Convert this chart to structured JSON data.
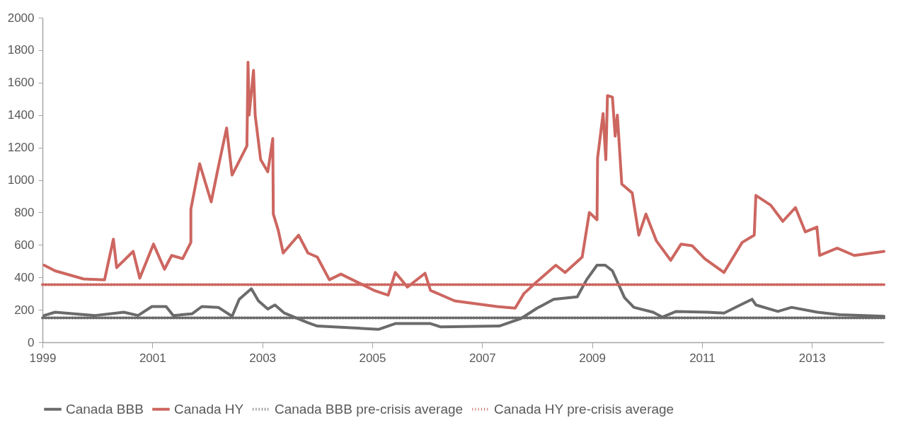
{
  "chart_data": {
    "type": "line",
    "xlim": [
      1999,
      2014.31
    ],
    "xticks": [
      1999,
      2001,
      2003,
      2005,
      2007,
      2009,
      2011,
      2013
    ],
    "ylim": [
      0,
      2000
    ],
    "yticks": [
      0,
      200,
      400,
      600,
      800,
      1000,
      1200,
      1400,
      1600,
      1800,
      2000
    ],
    "grid": false,
    "legend": "bottom",
    "line_style": "solid",
    "series": [
      {
        "name": "Canada BBB",
        "color": "#6b6b6b",
        "x": [
          1999.03,
          1999.23,
          1999.96,
          2000.48,
          2000.74,
          2000.99,
          2001.25,
          2001.38,
          2001.72,
          2001.9,
          2002.2,
          2002.45,
          2002.58,
          2002.8,
          2002.93,
          2003.1,
          2003.23,
          2003.4,
          2003.83,
          2004.0,
          2005.12,
          2005.42,
          2006.06,
          2006.24,
          2007.31,
          2007.7,
          2008.0,
          2008.3,
          2008.73,
          2008.9,
          2009.09,
          2009.24,
          2009.37,
          2009.59,
          2009.76,
          2010.11,
          2010.28,
          2010.53,
          2011.1,
          2011.4,
          2011.73,
          2011.91,
          2011.98,
          2012.38,
          2012.63,
          2013.1,
          2013.5,
          2014.31
        ],
        "values": [
          165,
          185,
          165,
          185,
          165,
          220,
          220,
          165,
          175,
          220,
          215,
          160,
          265,
          330,
          255,
          205,
          230,
          180,
          120,
          100,
          80,
          115,
          115,
          95,
          100,
          145,
          210,
          265,
          280,
          385,
          475,
          475,
          440,
          275,
          215,
          185,
          155,
          190,
          185,
          180,
          235,
          265,
          230,
          190,
          215,
          185,
          170,
          160
        ]
      },
      {
        "name": "Canada HY",
        "color": "#cd6660",
        "x": [
          1999.03,
          1999.23,
          1999.75,
          2000.13,
          2000.29,
          2000.35,
          2000.65,
          2000.77,
          2001.02,
          2001.22,
          2001.35,
          2001.55,
          2001.7,
          2001.7,
          2001.86,
          2002.07,
          2002.2,
          2002.35,
          2002.45,
          2002.72,
          2002.74,
          2002.76,
          2002.84,
          2002.87,
          2002.97,
          2003.1,
          2003.19,
          2003.2,
          2003.29,
          2003.38,
          2003.66,
          2003.83,
          2004.0,
          2004.22,
          2004.43,
          2005.03,
          2005.29,
          2005.42,
          2005.64,
          2005.96,
          2006.06,
          2006.5,
          2007.27,
          2007.6,
          2007.76,
          2008.0,
          2008.34,
          2008.51,
          2008.82,
          2008.95,
          2009.09,
          2009.1,
          2009.2,
          2009.25,
          2009.28,
          2009.37,
          2009.42,
          2009.46,
          2009.54,
          2009.73,
          2009.85,
          2009.98,
          2010.17,
          2010.43,
          2010.62,
          2010.82,
          2011.05,
          2011.4,
          2011.73,
          2011.95,
          2011.98,
          2012.25,
          2012.47,
          2012.7,
          2012.88,
          2013.09,
          2013.14,
          2013.46,
          2013.77,
          2014.31
        ],
        "values": [
          475,
          440,
          390,
          385,
          635,
          460,
          560,
          395,
          605,
          450,
          535,
          515,
          615,
          820,
          1100,
          865,
          1080,
          1320,
          1030,
          1210,
          1725,
          1400,
          1675,
          1400,
          1125,
          1050,
          1255,
          790,
          690,
          550,
          660,
          550,
          525,
          385,
          420,
          320,
          290,
          430,
          340,
          425,
          320,
          255,
          220,
          210,
          300,
          375,
          475,
          430,
          525,
          800,
          755,
          1135,
          1410,
          1125,
          1520,
          1510,
          1270,
          1400,
          975,
          920,
          660,
          790,
          625,
          505,
          605,
          595,
          515,
          430,
          615,
          660,
          905,
          845,
          745,
          830,
          680,
          710,
          535,
          580,
          535,
          560
        ]
      },
      {
        "name": "Canada BBB pre-crisis average",
        "color": "#6b6b6b",
        "line_style": "dotted",
        "x": [
          1999,
          2014.31
        ],
        "values": [
          150,
          150
        ]
      },
      {
        "name": "Canada HY pre-crisis average",
        "color": "#cd6660",
        "line_style": "dotted",
        "x": [
          1999,
          2014.31
        ],
        "values": [
          355,
          355
        ]
      }
    ]
  }
}
